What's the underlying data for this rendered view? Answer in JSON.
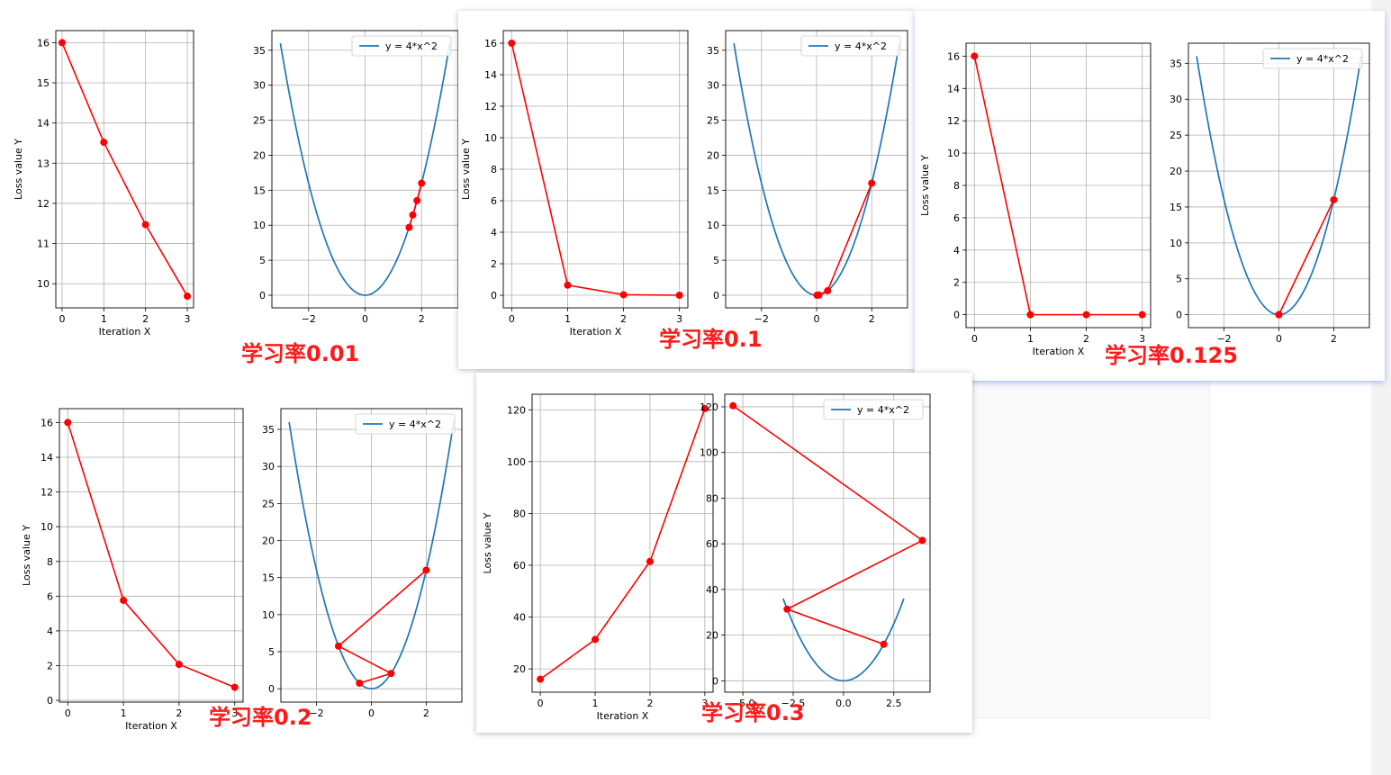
{
  "colors": {
    "curve": "#1f77b4",
    "path": "#ff0000",
    "label": "#ff1a1a",
    "grid": "#b0b0b0"
  },
  "chart_data": [
    {
      "id": "lr001",
      "type": "line",
      "annotation": "学习率0.01",
      "loss": {
        "xlabel": "Iteration X",
        "ylabel": "Loss value Y",
        "x": [
          0,
          1,
          2,
          3
        ],
        "y": [
          16,
          13.52,
          11.47,
          9.69
        ],
        "xlim": [
          -0.15,
          3.15
        ],
        "ylim": [
          9.4,
          16.3
        ],
        "xticks": [
          0,
          1,
          2,
          3
        ],
        "yticks": [
          10,
          11,
          12,
          13,
          14,
          15,
          16
        ]
      },
      "curve": {
        "legend": "y = 4*x^2",
        "xlim": [
          -3.3,
          3.3
        ],
        "ylim": [
          -1.8,
          37.8
        ],
        "xticks": [
          -2,
          0,
          2
        ],
        "yticks": [
          0,
          5,
          10,
          15,
          20,
          25,
          30,
          35
        ],
        "curve_range": [
          -3,
          3
        ],
        "path_x": [
          2,
          1.84,
          1.69,
          1.56
        ],
        "path_y": [
          16,
          13.52,
          11.47,
          9.69
        ]
      }
    },
    {
      "id": "lr01",
      "type": "line",
      "annotation": "学习率0.1",
      "loss": {
        "xlabel": "Iteration X",
        "ylabel": "Loss value Y",
        "x": [
          0,
          1,
          2,
          3
        ],
        "y": [
          16,
          0.64,
          0.03,
          0.0
        ],
        "xlim": [
          -0.15,
          3.15
        ],
        "ylim": [
          -0.8,
          16.8
        ],
        "xticks": [
          0,
          1,
          2,
          3
        ],
        "yticks": [
          0,
          2,
          4,
          6,
          8,
          10,
          12,
          14,
          16
        ]
      },
      "curve": {
        "legend": "y = 4*x^2",
        "xlim": [
          -3.3,
          3.3
        ],
        "ylim": [
          -1.8,
          37.8
        ],
        "xticks": [
          -2,
          0,
          2
        ],
        "yticks": [
          0,
          5,
          10,
          15,
          20,
          25,
          30,
          35
        ],
        "curve_range": [
          -3,
          3
        ],
        "path_x": [
          2,
          0.4,
          0.08,
          0.016
        ],
        "path_y": [
          16,
          0.64,
          0.03,
          0.0
        ]
      }
    },
    {
      "id": "lr0125",
      "type": "line",
      "annotation": "学习率0.125",
      "loss": {
        "xlabel": "Iteration X",
        "ylabel": "Loss value Y",
        "x": [
          0,
          1,
          2,
          3
        ],
        "y": [
          16,
          0,
          0,
          0
        ],
        "xlim": [
          -0.15,
          3.15
        ],
        "ylim": [
          -0.8,
          16.8
        ],
        "xticks": [
          0,
          1,
          2,
          3
        ],
        "yticks": [
          0,
          2,
          4,
          6,
          8,
          10,
          12,
          14,
          16
        ]
      },
      "curve": {
        "legend": "y = 4*x^2",
        "xlim": [
          -3.3,
          3.3
        ],
        "ylim": [
          -1.8,
          37.8
        ],
        "xticks": [
          -2,
          0,
          2
        ],
        "yticks": [
          0,
          5,
          10,
          15,
          20,
          25,
          30,
          35
        ],
        "curve_range": [
          -3,
          3
        ],
        "path_x": [
          2,
          0,
          0,
          0
        ],
        "path_y": [
          16,
          0,
          0,
          0
        ]
      }
    },
    {
      "id": "lr02",
      "type": "line",
      "annotation": "学习率0.2",
      "loss": {
        "xlabel": "Iteration X",
        "ylabel": "Loss value Y",
        "x": [
          0,
          1,
          2,
          3
        ],
        "y": [
          16,
          5.76,
          2.07,
          0.75
        ],
        "xlim": [
          -0.15,
          3.15
        ],
        "ylim": [
          -0.1,
          16.8
        ],
        "xticks": [
          0,
          1,
          2,
          3
        ],
        "yticks": [
          0,
          2,
          4,
          6,
          8,
          10,
          12,
          14,
          16
        ]
      },
      "curve": {
        "legend": "y = 4*x^2",
        "xlim": [
          -3.3,
          3.3
        ],
        "ylim": [
          -1.8,
          37.8
        ],
        "xticks": [
          -2,
          0,
          2
        ],
        "yticks": [
          0,
          5,
          10,
          15,
          20,
          25,
          30,
          35
        ],
        "curve_range": [
          -3,
          3
        ],
        "path_x": [
          2,
          -1.2,
          0.72,
          -0.432
        ],
        "path_y": [
          16,
          5.76,
          2.07,
          0.75
        ]
      }
    },
    {
      "id": "lr03",
      "type": "line",
      "annotation": "学习率0.3",
      "loss": {
        "xlabel": "Iteration X",
        "ylabel": "Loss value Y",
        "x": [
          0,
          1,
          2,
          3
        ],
        "y": [
          16,
          31.36,
          61.47,
          120.47
        ],
        "xlim": [
          -0.15,
          3.15
        ],
        "ylim": [
          11,
          126
        ],
        "xticks": [
          0,
          1,
          2,
          3
        ],
        "yticks": [
          20,
          40,
          60,
          80,
          100,
          120
        ]
      },
      "curve": {
        "legend": "y = 4*x^2",
        "xlim": [
          -5.9,
          4.3
        ],
        "ylim": [
          -5,
          125.5
        ],
        "xticks": [
          -5.0,
          -2.5,
          0.0,
          2.5
        ],
        "yticks": [
          0,
          20,
          40,
          60,
          80,
          100,
          120
        ],
        "xtick_labels": [
          "−5.0",
          "−2.5",
          "0.0",
          "2.5"
        ],
        "curve_range": [
          -3,
          3
        ],
        "path_x": [
          2,
          -2.8,
          3.92,
          -5.488
        ],
        "path_y": [
          16,
          31.36,
          61.47,
          120.47
        ]
      }
    }
  ]
}
